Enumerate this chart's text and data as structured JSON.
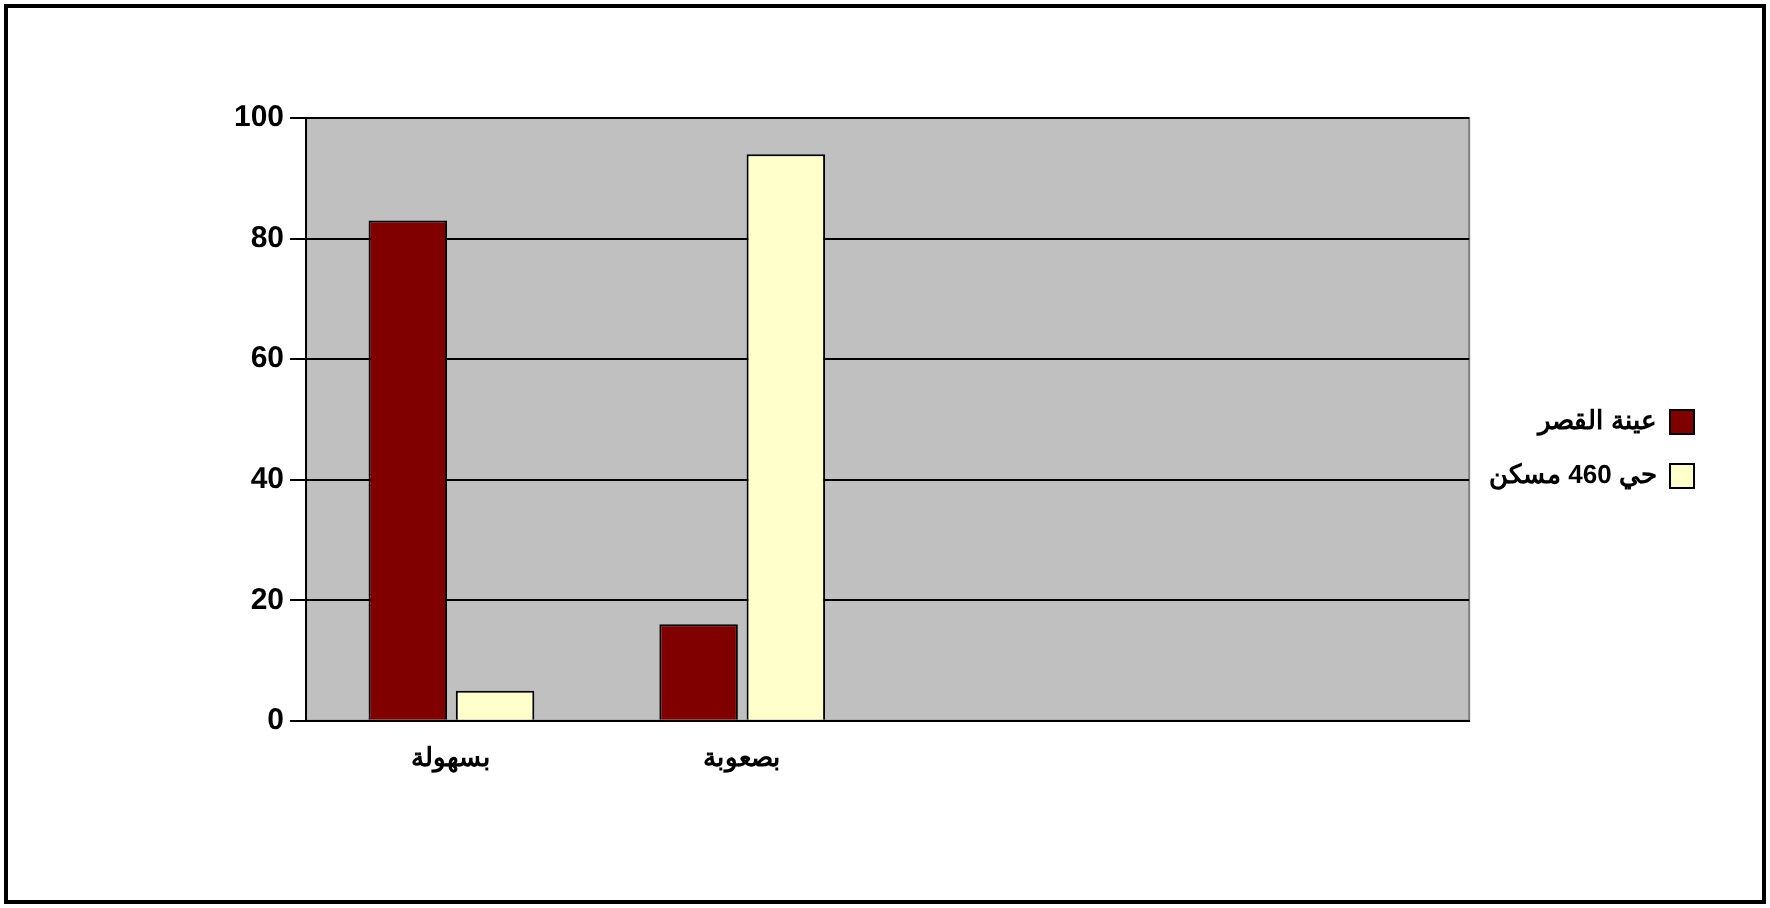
{
  "chart_data": {
    "type": "bar",
    "categories": [
      "بسهولة",
      "بصعوبة",
      null,
      null
    ],
    "series": [
      {
        "name": "عينة القصر",
        "color": "#800000",
        "values": [
          83,
          16,
          null,
          null
        ]
      },
      {
        "name": "حي 460 مسكن",
        "color": "#ffffcc",
        "values": [
          5,
          94,
          null,
          null
        ]
      }
    ],
    "ylim": [
      0,
      100
    ],
    "yticks": [
      0,
      20,
      40,
      60,
      80,
      100
    ],
    "grid": "y",
    "legend": "right"
  }
}
